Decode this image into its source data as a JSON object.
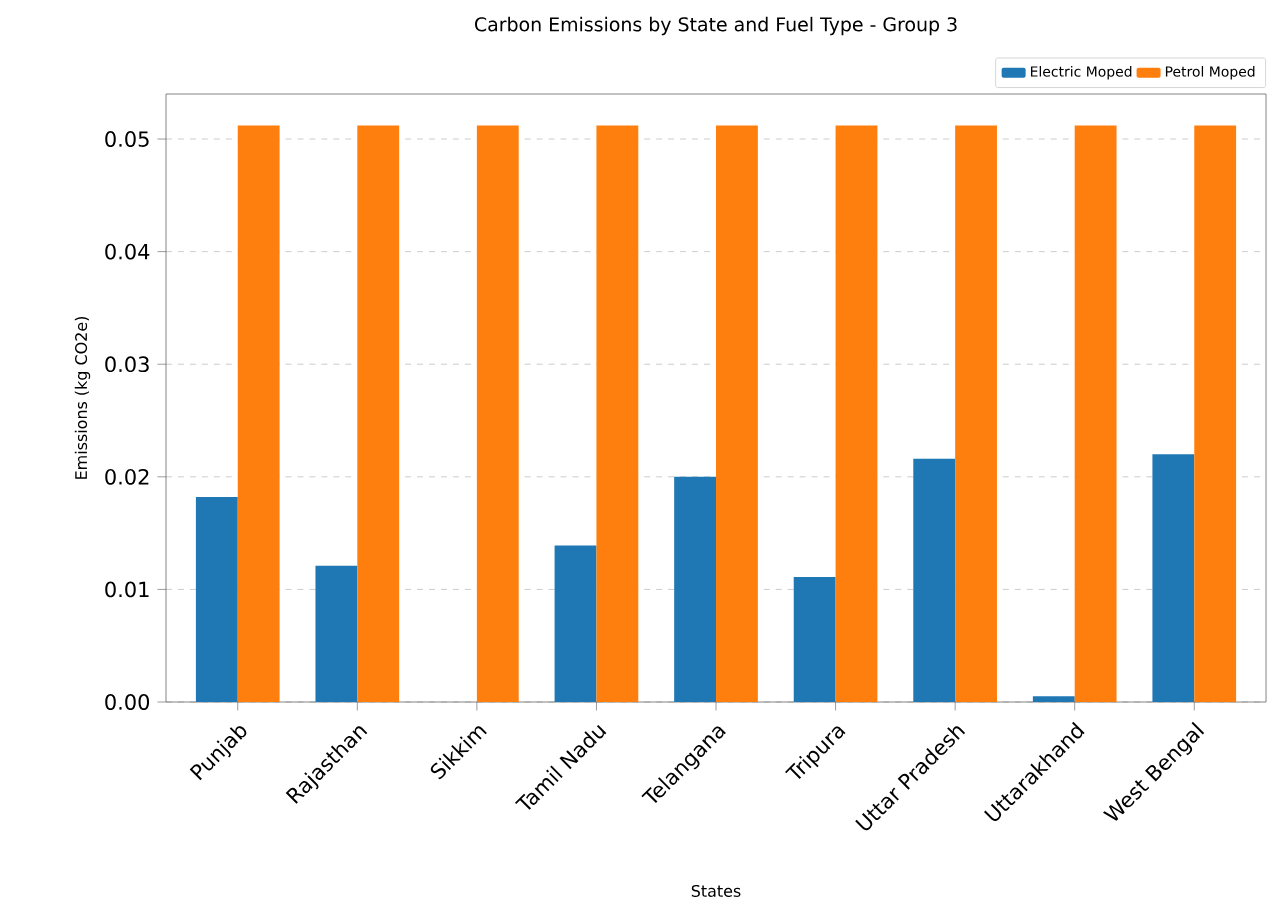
{
  "chart_data": {
    "type": "bar",
    "title": "Carbon Emissions by State and Fuel Type - Group 3",
    "xlabel": "States",
    "ylabel": "Emissions (kg CO2e)",
    "categories": [
      "Punjab",
      "Rajasthan",
      "Sikkim",
      "Tamil Nadu",
      "Telangana",
      "Tripura",
      "Uttar Pradesh",
      "Uttarakhand",
      "West Bengal"
    ],
    "series": [
      {
        "name": "Electric Moped",
        "color": "#1f77b4",
        "values": [
          0.0182,
          0.0121,
          0,
          0.0139,
          0.02,
          0.0111,
          0.0216,
          0.0005,
          0.022
        ]
      },
      {
        "name": "Petrol Moped",
        "color": "#ff7f0e",
        "values": [
          0.0512,
          0.0512,
          0.0512,
          0.0512,
          0.0512,
          0.0512,
          0.0512,
          0.0512,
          0.0512
        ]
      }
    ],
    "ylim": [
      0,
      0.054
    ],
    "yticks": [
      {
        "value": 0,
        "label": "0.00"
      },
      {
        "value": 0.01,
        "label": "0.01"
      },
      {
        "value": 0.02,
        "label": "0.02"
      },
      {
        "value": 0.03,
        "label": "0.03"
      },
      {
        "value": 0.04,
        "label": "0.04"
      },
      {
        "value": 0.05,
        "label": "0.05"
      }
    ],
    "grid": "y",
    "legend": "top right"
  }
}
